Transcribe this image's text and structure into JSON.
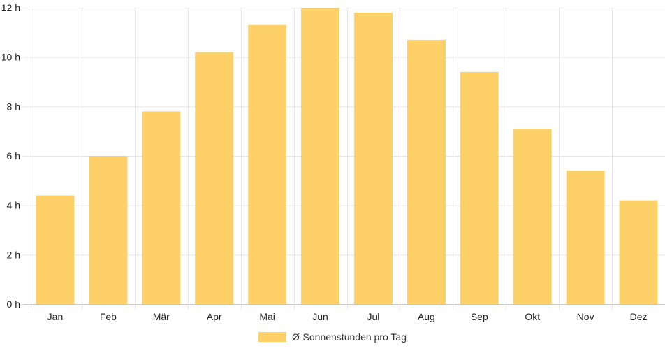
{
  "chart_data": {
    "type": "bar",
    "categories": [
      "Jan",
      "Feb",
      "Mär",
      "Apr",
      "Mai",
      "Jun",
      "Jul",
      "Aug",
      "Sep",
      "Okt",
      "Nov",
      "Dez"
    ],
    "series": [
      {
        "name": "Ø-Sonnenstunden pro Tag",
        "values": [
          4.4,
          6.0,
          7.8,
          10.2,
          11.3,
          12.0,
          11.8,
          10.7,
          9.4,
          7.1,
          5.4,
          4.2
        ]
      }
    ],
    "ylim": [
      0,
      12
    ],
    "y_ticks": [
      0,
      2,
      4,
      6,
      8,
      10,
      12
    ],
    "y_tick_suffix": " h",
    "grid": true,
    "legend_position": "bottom",
    "colors": {
      "bar_fill": "#fdd068",
      "grid": "#e6e6e6",
      "axis": "#c8c8c8"
    }
  }
}
